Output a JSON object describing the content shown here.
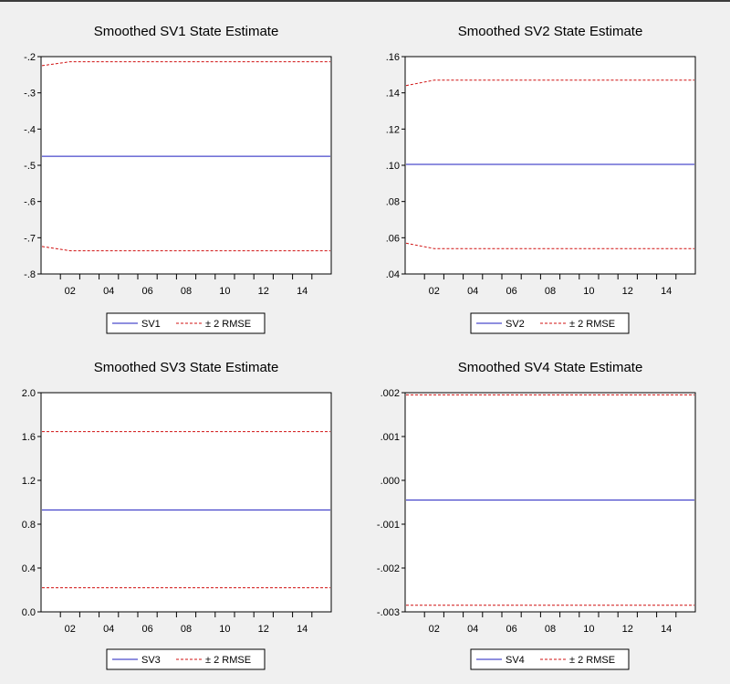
{
  "colors": {
    "estimate": "#1f1fbf",
    "band": "#d01010"
  },
  "chart_data": [
    {
      "type": "line",
      "title": "Smoothed SV1 State Estimate",
      "x": [
        "01",
        "02",
        "03",
        "04",
        "05",
        "06",
        "07",
        "08",
        "09",
        "10",
        "11",
        "12",
        "13",
        "14",
        "15"
      ],
      "xticks": [
        "02",
        "04",
        "06",
        "08",
        "10",
        "12",
        "14"
      ],
      "ylim": [
        -0.8,
        -0.2
      ],
      "yticks": [
        -0.2,
        -0.3,
        -0.4,
        -0.5,
        -0.6,
        -0.7,
        -0.8
      ],
      "ytick_labels": [
        "-.2",
        "-.3",
        "-.4",
        "-.5",
        "-.6",
        "-.7",
        "-.8"
      ],
      "series": [
        {
          "name": "SV1",
          "values": [
            -0.475,
            -0.475,
            -0.475,
            -0.475,
            -0.475,
            -0.475,
            -0.475,
            -0.475,
            -0.475,
            -0.475,
            -0.475,
            -0.475,
            -0.475,
            -0.475,
            -0.475
          ]
        },
        {
          "name": "± 2 RMSE",
          "values": [
            -0.225,
            -0.214,
            -0.214,
            -0.214,
            -0.214,
            -0.214,
            -0.214,
            -0.214,
            -0.214,
            -0.214,
            -0.214,
            -0.214,
            -0.214,
            -0.214,
            -0.214
          ]
        },
        {
          "values": [
            -0.724,
            -0.736,
            -0.736,
            -0.736,
            -0.736,
            -0.736,
            -0.736,
            -0.736,
            -0.736,
            -0.736,
            -0.736,
            -0.736,
            -0.736,
            -0.736,
            -0.736
          ]
        }
      ],
      "legend": [
        "SV1",
        "± 2 RMSE"
      ]
    },
    {
      "type": "line",
      "title": "Smoothed SV2 State Estimate",
      "x": [
        "01",
        "02",
        "03",
        "04",
        "05",
        "06",
        "07",
        "08",
        "09",
        "10",
        "11",
        "12",
        "13",
        "14",
        "15"
      ],
      "xticks": [
        "02",
        "04",
        "06",
        "08",
        "10",
        "12",
        "14"
      ],
      "ylim": [
        0.04,
        0.16
      ],
      "yticks": [
        0.16,
        0.14,
        0.12,
        0.1,
        0.08,
        0.06,
        0.04
      ],
      "ytick_labels": [
        ".16",
        ".14",
        ".12",
        ".10",
        ".08",
        ".06",
        ".04"
      ],
      "series": [
        {
          "name": "SV2",
          "values": [
            0.1005,
            0.1005,
            0.1005,
            0.1005,
            0.1005,
            0.1005,
            0.1005,
            0.1005,
            0.1005,
            0.1005,
            0.1005,
            0.1005,
            0.1005,
            0.1005,
            0.1005
          ]
        },
        {
          "name": "± 2 RMSE",
          "values": [
            0.144,
            0.147,
            0.147,
            0.147,
            0.147,
            0.147,
            0.147,
            0.147,
            0.147,
            0.147,
            0.147,
            0.147,
            0.147,
            0.147,
            0.147
          ]
        },
        {
          "values": [
            0.057,
            0.054,
            0.054,
            0.054,
            0.054,
            0.054,
            0.054,
            0.054,
            0.054,
            0.054,
            0.054,
            0.054,
            0.054,
            0.054,
            0.054
          ]
        }
      ],
      "legend": [
        "SV2",
        "± 2 RMSE"
      ]
    },
    {
      "type": "line",
      "title": "Smoothed SV3 State Estimate",
      "x": [
        "01",
        "02",
        "03",
        "04",
        "05",
        "06",
        "07",
        "08",
        "09",
        "10",
        "11",
        "12",
        "13",
        "14",
        "15"
      ],
      "xticks": [
        "02",
        "04",
        "06",
        "08",
        "10",
        "12",
        "14"
      ],
      "ylim": [
        0.0,
        2.0
      ],
      "yticks": [
        2.0,
        1.6,
        1.2,
        0.8,
        0.4,
        0.0
      ],
      "ytick_labels": [
        "2.0",
        "1.6",
        "1.2",
        "0.8",
        "0.4",
        "0.0"
      ],
      "series": [
        {
          "name": "SV3",
          "values": [
            0.93,
            0.93,
            0.93,
            0.93,
            0.93,
            0.93,
            0.93,
            0.93,
            0.93,
            0.93,
            0.93,
            0.93,
            0.93,
            0.93,
            0.93
          ]
        },
        {
          "name": "± 2 RMSE",
          "values": [
            1.645,
            1.645,
            1.645,
            1.645,
            1.645,
            1.645,
            1.645,
            1.645,
            1.645,
            1.645,
            1.645,
            1.645,
            1.645,
            1.645,
            1.645
          ]
        },
        {
          "values": [
            0.22,
            0.22,
            0.22,
            0.22,
            0.22,
            0.22,
            0.22,
            0.22,
            0.22,
            0.22,
            0.22,
            0.22,
            0.22,
            0.22,
            0.22
          ]
        }
      ],
      "legend": [
        "SV3",
        "± 2 RMSE"
      ]
    },
    {
      "type": "line",
      "title": "Smoothed SV4 State Estimate",
      "x": [
        "01",
        "02",
        "03",
        "04",
        "05",
        "06",
        "07",
        "08",
        "09",
        "10",
        "11",
        "12",
        "13",
        "14",
        "15"
      ],
      "xticks": [
        "02",
        "04",
        "06",
        "08",
        "10",
        "12",
        "14"
      ],
      "ylim": [
        -0.003,
        0.002
      ],
      "yticks": [
        0.002,
        0.001,
        0.0,
        -0.001,
        -0.002,
        -0.003
      ],
      "ytick_labels": [
        ".002",
        ".001",
        ".000",
        "-.001",
        "-.002",
        "-.003"
      ],
      "series": [
        {
          "name": "SV4",
          "values": [
            -0.00045,
            -0.00045,
            -0.00045,
            -0.00045,
            -0.00045,
            -0.00045,
            -0.00045,
            -0.00045,
            -0.00045,
            -0.00045,
            -0.00045,
            -0.00045,
            -0.00045,
            -0.00045,
            -0.00045
          ]
        },
        {
          "name": "± 2 RMSE",
          "values": [
            0.00195,
            0.00195,
            0.00195,
            0.00195,
            0.00195,
            0.00195,
            0.00195,
            0.00195,
            0.00195,
            0.00195,
            0.00195,
            0.00195,
            0.00195,
            0.00195,
            0.00195
          ]
        },
        {
          "values": [
            -0.00285,
            -0.00285,
            -0.00285,
            -0.00285,
            -0.00285,
            -0.00285,
            -0.00285,
            -0.00285,
            -0.00285,
            -0.00285,
            -0.00285,
            -0.00285,
            -0.00285,
            -0.00285,
            -0.00285
          ]
        }
      ],
      "legend": [
        "SV4",
        "± 2 RMSE"
      ]
    }
  ]
}
